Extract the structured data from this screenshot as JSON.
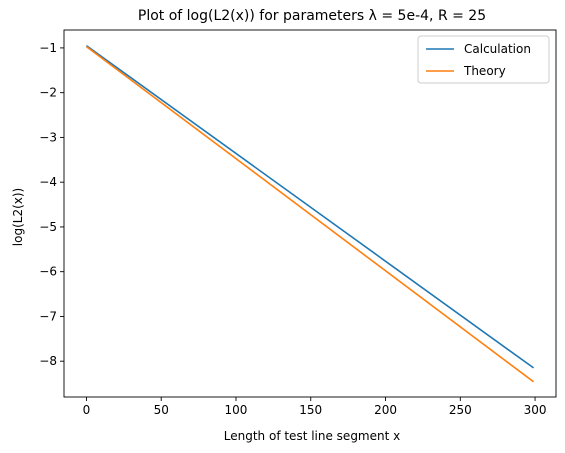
{
  "chart_data": {
    "type": "line",
    "title": "Plot of log(L2(x)) for parameters λ = 5e-4, R = 25",
    "xlabel": "Length of test line segment x",
    "ylabel": "log(L2(x))",
    "xlim": [
      -15,
      314
    ],
    "ylim": [
      -8.8,
      -0.6
    ],
    "x_ticks": [
      0,
      50,
      100,
      150,
      200,
      250,
      300
    ],
    "x_tick_labels": [
      "0",
      "50",
      "100",
      "150",
      "200",
      "250",
      "300"
    ],
    "y_ticks": [
      -1,
      -2,
      -3,
      -4,
      -5,
      -6,
      -7,
      -8
    ],
    "y_tick_labels": [
      "−1",
      "−2",
      "−3",
      "−4",
      "−5",
      "−6",
      "−7",
      "−8"
    ],
    "grid": false,
    "legend_position": "top-right",
    "series": [
      {
        "name": "Calculation",
        "color": "#1f77b4",
        "x": [
          0,
          299
        ],
        "y": [
          -0.95,
          -8.15
        ]
      },
      {
        "name": "Theory",
        "color": "#ff7f0e",
        "x": [
          0,
          299
        ],
        "y": [
          -0.97,
          -8.46
        ]
      }
    ]
  }
}
